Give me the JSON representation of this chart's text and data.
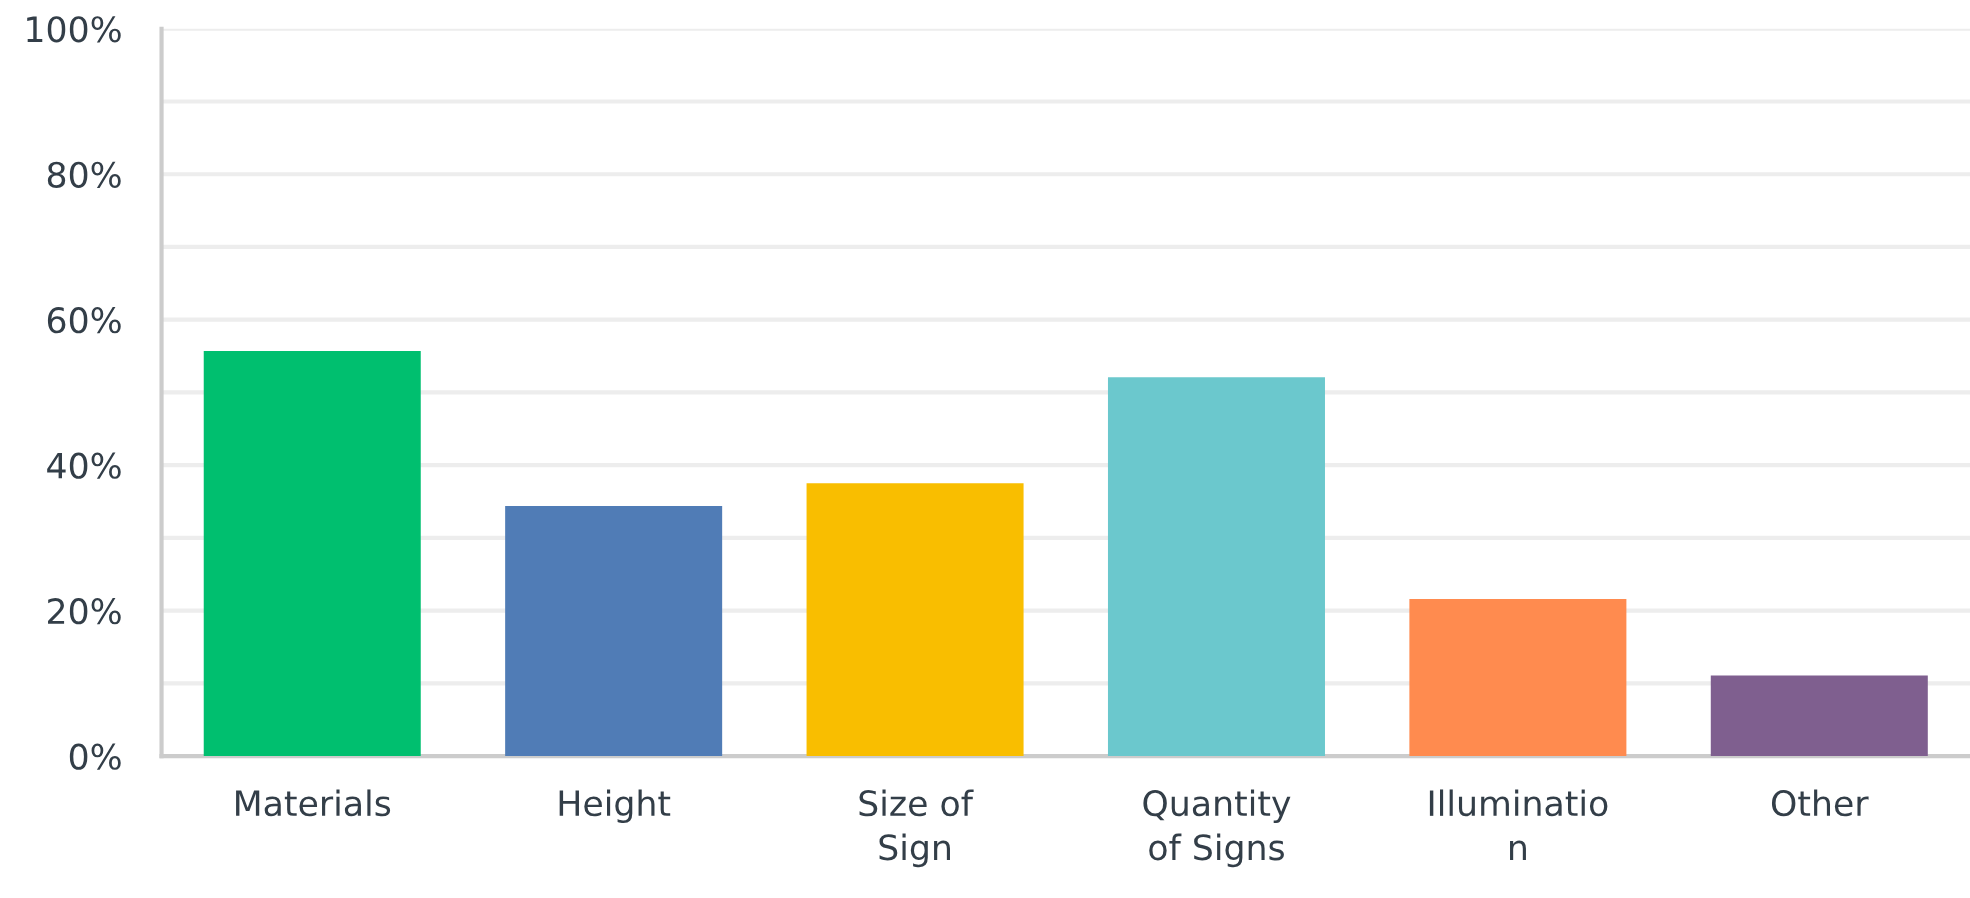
{
  "chart_data": {
    "type": "bar",
    "categories": [
      "Materials",
      "Height",
      "Size of\nSign",
      "Quantity\nof Signs",
      "Illuminatio\nn",
      "Other"
    ],
    "values": [
      55.7,
      34.4,
      37.5,
      52.1,
      21.6,
      11.1
    ],
    "colors": [
      "#00bf6f",
      "#507cb6",
      "#f9be00",
      "#6bc8cd",
      "#ff8b4f",
      "#7f5f8f"
    ],
    "ylim": [
      0,
      100
    ],
    "yticks": [
      {
        "value": 0,
        "label": "0%"
      },
      {
        "value": 10,
        "label": null
      },
      {
        "value": 20,
        "label": "20%"
      },
      {
        "value": 30,
        "label": null
      },
      {
        "value": 40,
        "label": "40%"
      },
      {
        "value": 50,
        "label": null
      },
      {
        "value": 60,
        "label": "60%"
      },
      {
        "value": 70,
        "label": null
      },
      {
        "value": 80,
        "label": "80%"
      },
      {
        "value": 90,
        "label": null
      },
      {
        "value": 100,
        "label": "100%"
      }
    ],
    "grid": "y"
  }
}
